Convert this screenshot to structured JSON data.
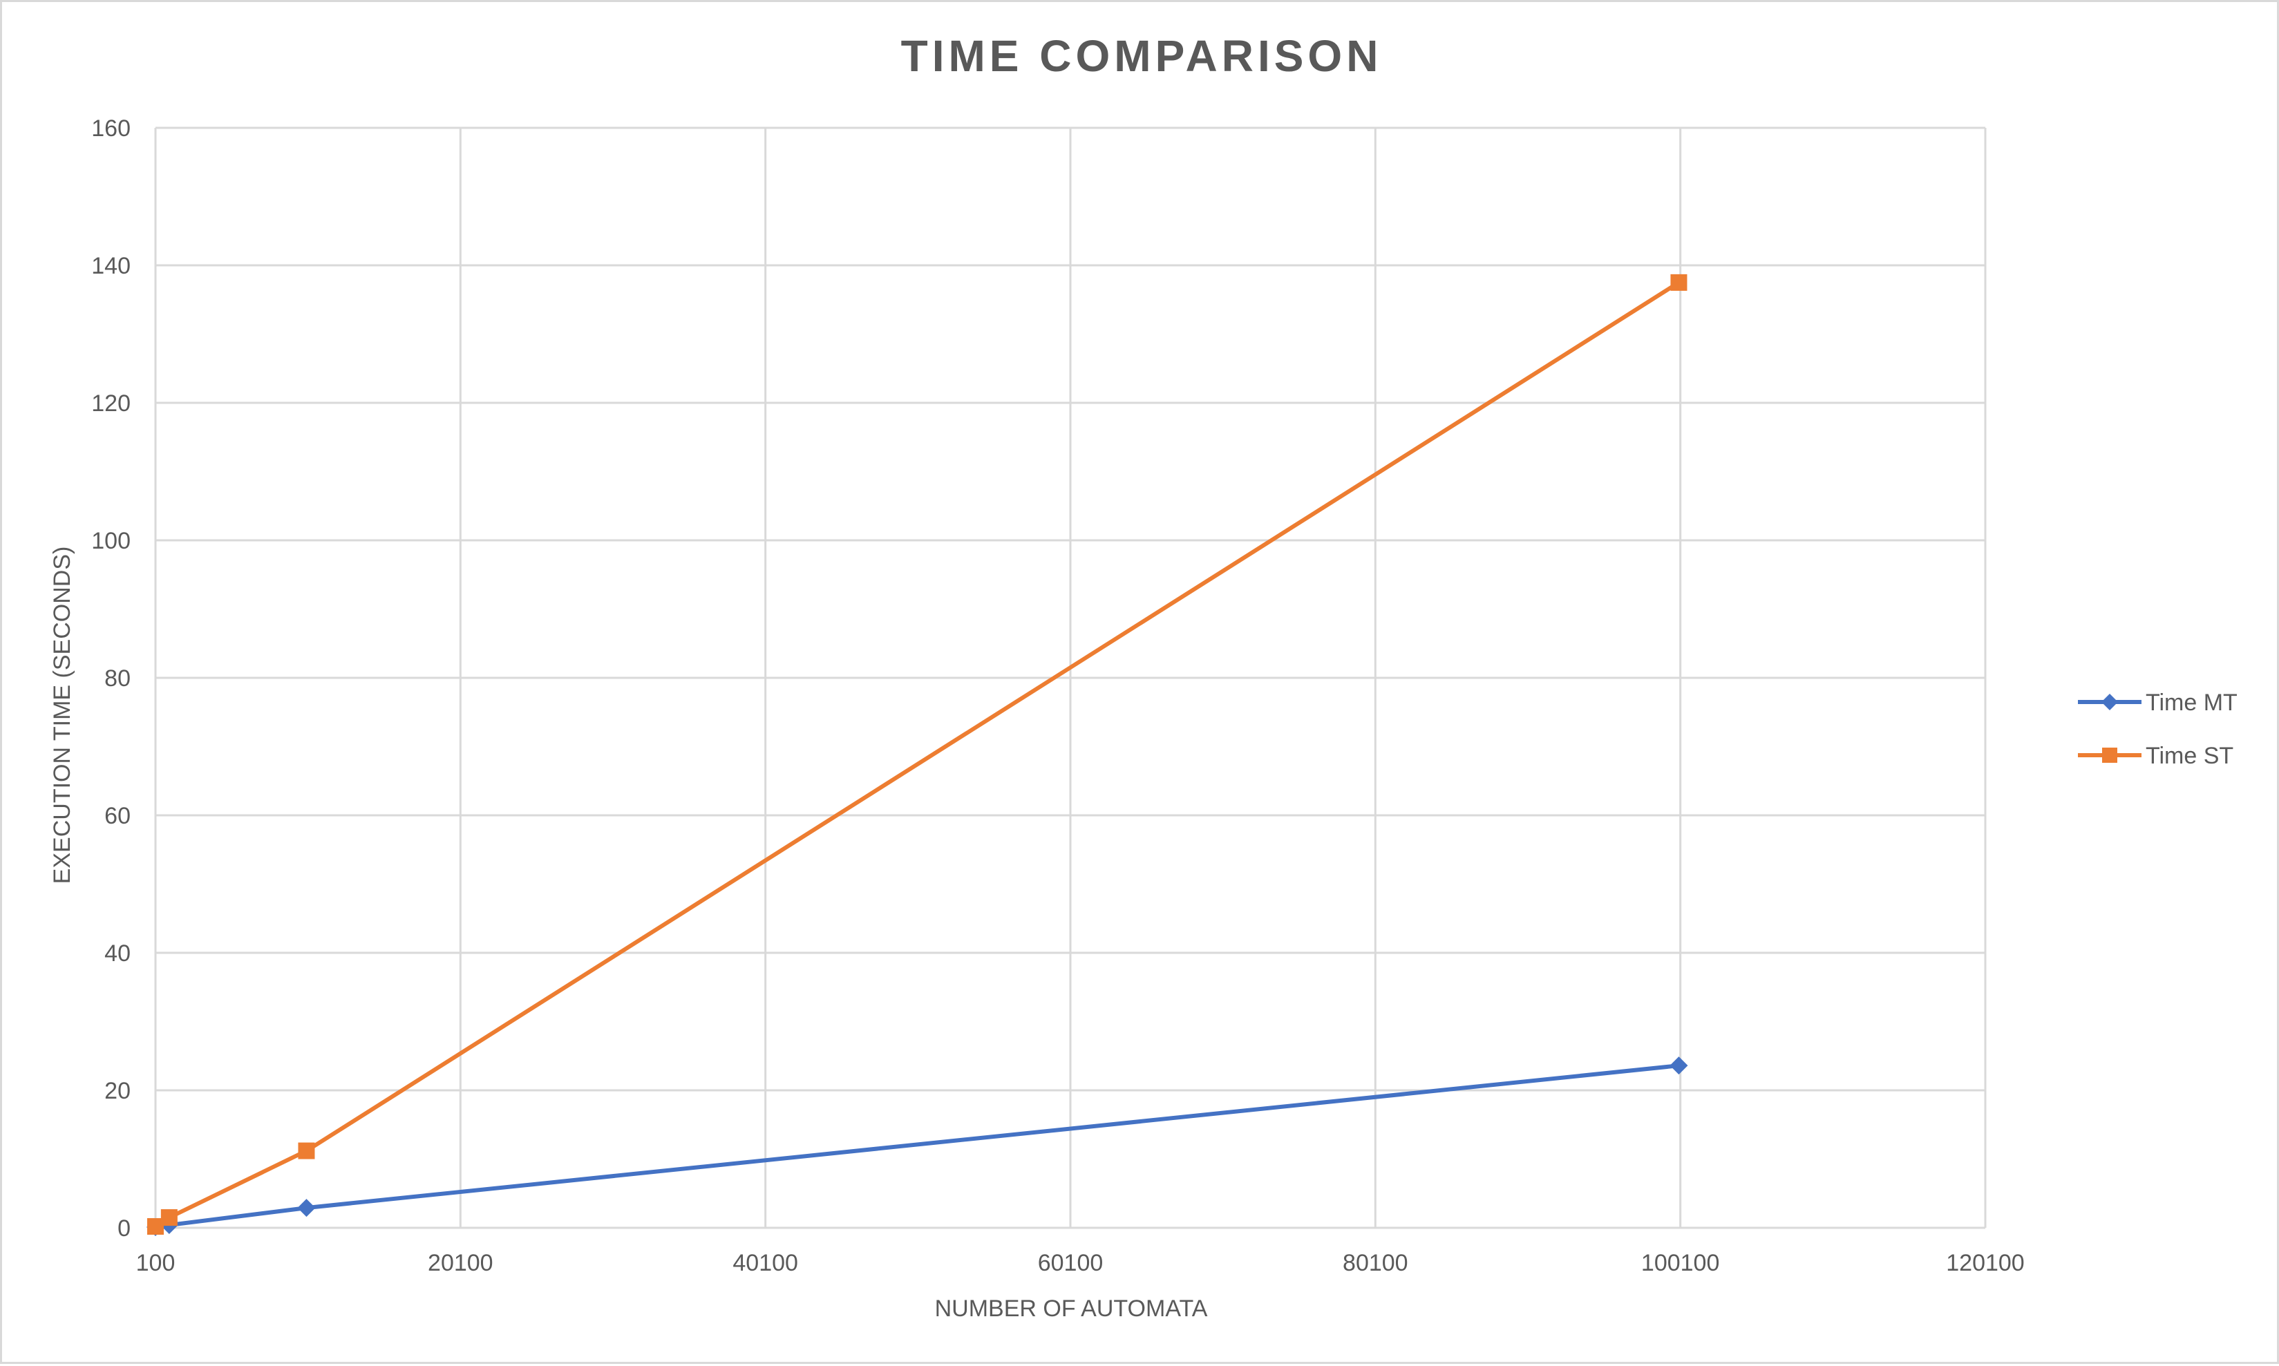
{
  "chart_data": {
    "type": "line",
    "title": "TIME COMPARISON",
    "xlabel": "NUMBER OF AUTOMATA",
    "ylabel": "EXECUTION TIME (SECONDS)",
    "xlim": [
      100,
      120100
    ],
    "ylim": [
      0,
      160
    ],
    "x_ticks": [
      "100",
      "20100",
      "40100",
      "60100",
      "80100",
      "100100",
      "120100"
    ],
    "y_ticks": [
      "0",
      "20",
      "40",
      "60",
      "80",
      "100",
      "120",
      "140",
      "160"
    ],
    "grid": true,
    "legend_position": "right",
    "series": [
      {
        "name": "Time MT",
        "color": "#4472c4",
        "marker": "diamond",
        "x": [
          100,
          1000,
          10000,
          100000
        ],
        "y": [
          0.1,
          0.4,
          2.9,
          23.6
        ]
      },
      {
        "name": "Time ST",
        "color": "#ed7d31",
        "marker": "square",
        "x": [
          100,
          1000,
          10000,
          100000
        ],
        "y": [
          0.2,
          1.5,
          11.2,
          137.5
        ]
      }
    ]
  }
}
